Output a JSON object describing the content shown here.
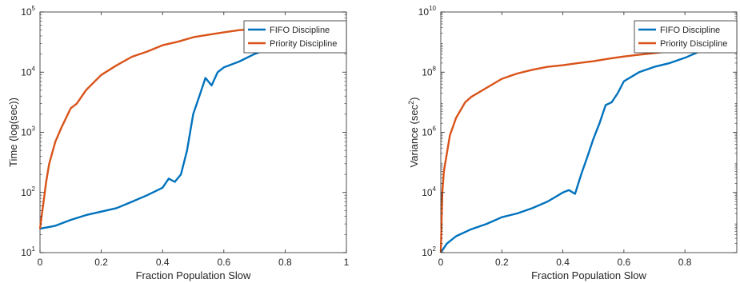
{
  "chart_data": [
    {
      "type": "line",
      "xlabel": "Fraction Population Slow",
      "ylabel": "Time (log(sec))",
      "yscale": "log",
      "xlim": [
        0,
        1
      ],
      "ylim": [
        10,
        100000
      ],
      "xticks": [
        {
          "v": 0,
          "label": "0"
        },
        {
          "v": 0.2,
          "label": "0.2"
        },
        {
          "v": 0.4,
          "label": "0.4"
        },
        {
          "v": 0.6,
          "label": "0.6"
        },
        {
          "v": 0.8,
          "label": "0.8"
        },
        {
          "v": 1,
          "label": "1"
        }
      ],
      "yticks": [
        {
          "v": 10,
          "base": "10",
          "exp": "1"
        },
        {
          "v": 100,
          "base": "10",
          "exp": "2"
        },
        {
          "v": 1000,
          "base": "10",
          "exp": "3"
        },
        {
          "v": 10000,
          "base": "10",
          "exp": "4"
        },
        {
          "v": 100000,
          "base": "10",
          "exp": "5"
        }
      ],
      "legend_position": "top-right",
      "grid": false,
      "series": [
        {
          "name": "FIFO Discipline",
          "color": "#0072BD",
          "x": [
            0,
            0.05,
            0.1,
            0.15,
            0.2,
            0.25,
            0.3,
            0.35,
            0.4,
            0.42,
            0.44,
            0.46,
            0.48,
            0.5,
            0.52,
            0.54,
            0.56,
            0.58,
            0.6,
            0.65,
            0.7,
            0.75,
            0.8,
            0.85,
            0.9,
            0.95,
            1
          ],
          "y": [
            25,
            28,
            35,
            42,
            48,
            55,
            70,
            90,
            120,
            170,
            150,
            200,
            500,
            2000,
            4000,
            8000,
            6000,
            10000,
            12000,
            15000,
            20000,
            25000,
            30000,
            40000,
            50000,
            55000,
            60000
          ]
        },
        {
          "name": "Priority Discipline",
          "color": "#D95319",
          "x": [
            0,
            0.01,
            0.02,
            0.03,
            0.05,
            0.07,
            0.1,
            0.12,
            0.15,
            0.2,
            0.25,
            0.3,
            0.35,
            0.4,
            0.45,
            0.5,
            0.55,
            0.6,
            0.65,
            0.7,
            0.75,
            0.8,
            0.85,
            0.9,
            0.95,
            1
          ],
          "y": [
            25,
            60,
            150,
            300,
            700,
            1200,
            2500,
            3000,
            5000,
            9000,
            13000,
            18000,
            22000,
            28000,
            32000,
            38000,
            42000,
            46000,
            50000,
            52000,
            54000,
            56000,
            57000,
            58000,
            59000,
            60000
          ]
        }
      ]
    },
    {
      "type": "line",
      "xlabel": "Fraction Population Slow",
      "ylabel_main": "Variance (sec",
      "ylabel_sup": "2",
      "ylabel_end": ")",
      "yscale": "log",
      "xlim": [
        0,
        0.97
      ],
      "ylim": [
        100,
        10000000000
      ],
      "xticks": [
        {
          "v": 0,
          "label": "0"
        },
        {
          "v": 0.2,
          "label": "0.2"
        },
        {
          "v": 0.4,
          "label": "0.4"
        },
        {
          "v": 0.6,
          "label": "0.6"
        },
        {
          "v": 0.8,
          "label": "0.8"
        }
      ],
      "yticks": [
        {
          "v": 100,
          "base": "10",
          "exp": "2"
        },
        {
          "v": 10000,
          "base": "10",
          "exp": "4"
        },
        {
          "v": 1000000,
          "base": "10",
          "exp": "6"
        },
        {
          "v": 100000000,
          "base": "10",
          "exp": "8"
        },
        {
          "v": 10000000000,
          "base": "10",
          "exp": "10"
        }
      ],
      "legend_position": "top-right",
      "grid": false,
      "series": [
        {
          "name": "FIFO Discipline",
          "color": "#0072BD",
          "x": [
            0,
            0.02,
            0.05,
            0.1,
            0.15,
            0.2,
            0.25,
            0.3,
            0.35,
            0.4,
            0.42,
            0.44,
            0.46,
            0.48,
            0.5,
            0.52,
            0.54,
            0.56,
            0.58,
            0.6,
            0.65,
            0.7,
            0.75,
            0.8,
            0.85,
            0.9,
            0.95,
            0.97
          ],
          "y": [
            100,
            200,
            350,
            600,
            900,
            1500,
            2000,
            3000,
            5000,
            10000,
            12000,
            9000,
            40000,
            150000,
            600000,
            2000000,
            8000000,
            10000000,
            20000000,
            50000000,
            100000000,
            150000000,
            200000000,
            300000000,
            500000000,
            700000000,
            900000000,
            1000000000
          ]
        },
        {
          "name": "Priority Discipline",
          "color": "#D95319",
          "x": [
            0,
            0.005,
            0.01,
            0.02,
            0.03,
            0.05,
            0.08,
            0.1,
            0.15,
            0.2,
            0.25,
            0.3,
            0.35,
            0.4,
            0.45,
            0.5,
            0.55,
            0.6,
            0.65,
            0.7,
            0.75,
            0.8,
            0.85,
            0.9,
            0.95,
            0.97
          ],
          "y": [
            100,
            10000,
            50000,
            200000,
            800000,
            3000000,
            10000000,
            15000000,
            30000000,
            60000000,
            90000000,
            120000000,
            150000000,
            170000000,
            200000000,
            230000000,
            280000000,
            330000000,
            380000000,
            430000000,
            500000000,
            570000000,
            650000000,
            730000000,
            820000000,
            900000000
          ]
        }
      ]
    }
  ]
}
